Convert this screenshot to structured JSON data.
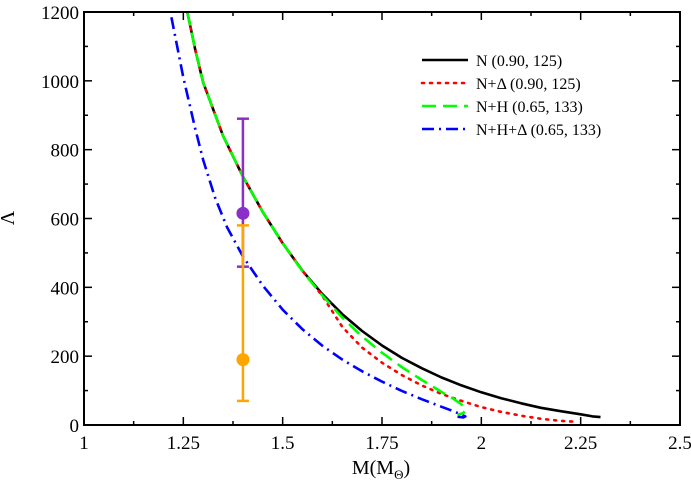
{
  "chart_data": {
    "type": "line",
    "title": "",
    "xlabel": "M(M",
    "xlabel_sub": "Θ",
    "xlabel_close": ")",
    "ylabel": "Λ",
    "xlim": [
      1,
      2.5
    ],
    "ylim": [
      0,
      1200
    ],
    "x_ticks": [
      1,
      1.25,
      1.5,
      1.75,
      2,
      2.25,
      2.5
    ],
    "x_tick_labels": [
      "1",
      "1.25",
      "1.5",
      "1.75",
      "2",
      "2.25",
      "2.5"
    ],
    "y_ticks": [
      0,
      200,
      400,
      600,
      800,
      1000,
      1200
    ],
    "y_tick_labels": [
      "0",
      "200",
      "400",
      "600",
      "800",
      "1000",
      "1200"
    ],
    "legend_position": "top-right",
    "series": [
      {
        "name": "N (0.90, 125)",
        "color": "#000000",
        "style": "solid",
        "x": [
          1.26,
          1.28,
          1.3,
          1.35,
          1.4,
          1.45,
          1.5,
          1.55,
          1.6,
          1.65,
          1.7,
          1.75,
          1.8,
          1.85,
          1.9,
          1.95,
          2.0,
          2.05,
          2.1,
          2.15,
          2.2,
          2.25,
          2.28,
          2.3
        ],
        "y": [
          1200,
          1090,
          995,
          840,
          722,
          619,
          528,
          448,
          380,
          322,
          273,
          231,
          195,
          165,
          138,
          115,
          95,
          78,
          63,
          50,
          40,
          31,
          25,
          23
        ]
      },
      {
        "name": "N+Δ (0.90, 125)",
        "color": "#ff0000",
        "style": "dotted",
        "x": [
          1.26,
          1.28,
          1.3,
          1.35,
          1.4,
          1.45,
          1.5,
          1.55,
          1.6,
          1.65,
          1.7,
          1.75,
          1.8,
          1.85,
          1.9,
          1.95,
          2.0,
          2.05,
          2.1,
          2.15,
          2.2,
          2.23
        ],
        "y": [
          1200,
          1090,
          995,
          840,
          722,
          619,
          528,
          448,
          375,
          285,
          225,
          181,
          145,
          115,
          90,
          70,
          52,
          38,
          27,
          18,
          12,
          10
        ]
      },
      {
        "name": "N+H (0.65, 133)",
        "color": "#00ff00",
        "style": "dashed",
        "x": [
          1.26,
          1.28,
          1.3,
          1.35,
          1.4,
          1.45,
          1.5,
          1.55,
          1.6,
          1.65,
          1.7,
          1.75,
          1.8,
          1.85,
          1.9,
          1.93,
          1.95,
          1.96,
          1.955,
          1.94
        ],
        "y": [
          1200,
          1090,
          995,
          840,
          722,
          619,
          528,
          447,
          376,
          312,
          257,
          210,
          168,
          131,
          96,
          76,
          60,
          45,
          35,
          30
        ]
      },
      {
        "name": "N+H+Δ (0.65, 133)",
        "color": "#0000ff",
        "style": "dashdot",
        "x": [
          1.22,
          1.25,
          1.28,
          1.3,
          1.33,
          1.36,
          1.4,
          1.45,
          1.5,
          1.55,
          1.6,
          1.65,
          1.7,
          1.75,
          1.8,
          1.85,
          1.9,
          1.93,
          1.95,
          1.96,
          1.955,
          1.94
        ],
        "y": [
          1185,
          1010,
          860,
          770,
          660,
          575,
          490,
          405,
          335,
          278,
          230,
          190,
          156,
          126,
          99,
          75,
          53,
          40,
          30,
          25,
          22,
          24
        ]
      }
    ],
    "error_bars": [
      {
        "name": "purple-measurement",
        "color": "#8b2fc9",
        "x": 1.4,
        "y": 615,
        "y_low": 460,
        "y_high": 890
      },
      {
        "name": "orange-measurement",
        "color": "#ffa500",
        "x": 1.4,
        "y": 190,
        "y_low": 70,
        "y_high": 580
      }
    ]
  }
}
